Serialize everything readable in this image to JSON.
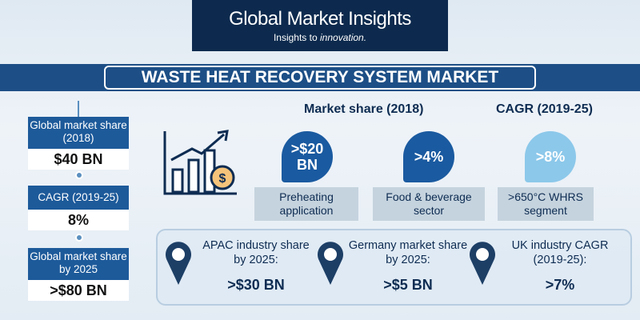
{
  "header": {
    "logo_title": "Global Market Insights",
    "tagline_lead": "Insights to",
    "tagline_emphasis": "innovation."
  },
  "title": "WASTE HEAT RECOVERY SYSTEM MARKET",
  "left_stats": [
    {
      "label": "Global market share (2018)",
      "value": "$40 BN"
    },
    {
      "label": "CAGR (2019-25)",
      "value": "8%"
    },
    {
      "label": "Global market share by 2025",
      "value": ">$80 BN"
    }
  ],
  "headings": [
    "Market share (2018)",
    "CAGR (2019-25)"
  ],
  "bubbles": [
    {
      "value": ">$20 BN",
      "label": "Preheating application"
    },
    {
      "value": ">4%",
      "label": "Food & beverage sector"
    },
    {
      "value": ">8%",
      "label": ">650°C WHRS segment"
    }
  ],
  "regional": [
    {
      "label": "APAC industry share by 2025:",
      "value": ">$30 BN"
    },
    {
      "label": "Germany market share by 2025:",
      "value": ">$5 BN"
    },
    {
      "label": "UK industry CAGR (2019-25):",
      "value": ">7%"
    }
  ]
}
